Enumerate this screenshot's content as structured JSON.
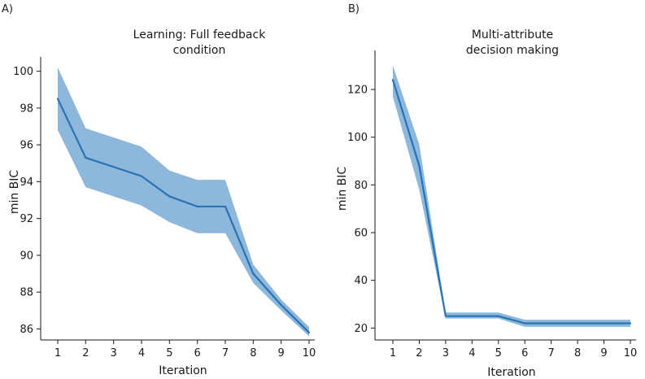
{
  "chart_data": [
    {
      "panel_label": "A)",
      "type": "line",
      "title_lines": [
        "Learning: Full feedback",
        "condition"
      ],
      "xlabel": "Iteration",
      "ylabel": "min BIC",
      "x": [
        1,
        2,
        3,
        4,
        5,
        6,
        7,
        8,
        9,
        10
      ],
      "xticks": [
        1,
        2,
        3,
        4,
        5,
        6,
        7,
        8,
        9,
        10
      ],
      "yticks": [
        86,
        88,
        90,
        92,
        94,
        96,
        98,
        100
      ],
      "ylim": [
        85.4,
        100.6
      ],
      "series": [
        {
          "values": [
            98.5,
            95.3,
            94.8,
            94.3,
            93.2,
            92.65,
            92.65,
            89.0,
            87.3,
            85.8
          ],
          "upper": [
            100.2,
            96.9,
            96.4,
            95.9,
            94.6,
            94.1,
            94.1,
            89.5,
            87.6,
            86.1
          ],
          "lower": [
            96.8,
            93.7,
            93.2,
            92.7,
            91.8,
            91.2,
            91.2,
            88.5,
            87.0,
            85.6
          ]
        }
      ],
      "colors": {
        "line": "#2a73b3",
        "band": "#8db8dc"
      }
    },
    {
      "panel_label": "B)",
      "type": "line",
      "title_lines": [
        "Multi-attribute",
        "decision making"
      ],
      "xlabel": "Iteration",
      "ylabel": "min BIC",
      "x": [
        1,
        2,
        3,
        4,
        5,
        6,
        7,
        8,
        9,
        10
      ],
      "xticks": [
        1,
        2,
        3,
        4,
        5,
        6,
        7,
        8,
        9,
        10
      ],
      "yticks": [
        20,
        40,
        60,
        80,
        100,
        120
      ],
      "ylim": [
        15,
        135
      ],
      "series": [
        {
          "values": [
            124,
            88,
            25,
            25,
            25,
            22,
            22,
            22,
            22,
            22
          ],
          "upper": [
            130,
            97,
            26.5,
            26.5,
            26.5,
            23.5,
            23.5,
            23.5,
            23.5,
            23.5
          ],
          "lower": [
            117,
            78,
            24,
            24,
            24,
            20.5,
            20.5,
            20.5,
            20.5,
            20.5
          ]
        }
      ],
      "colors": {
        "line": "#2a73b3",
        "band": "#8db8dc"
      }
    }
  ]
}
